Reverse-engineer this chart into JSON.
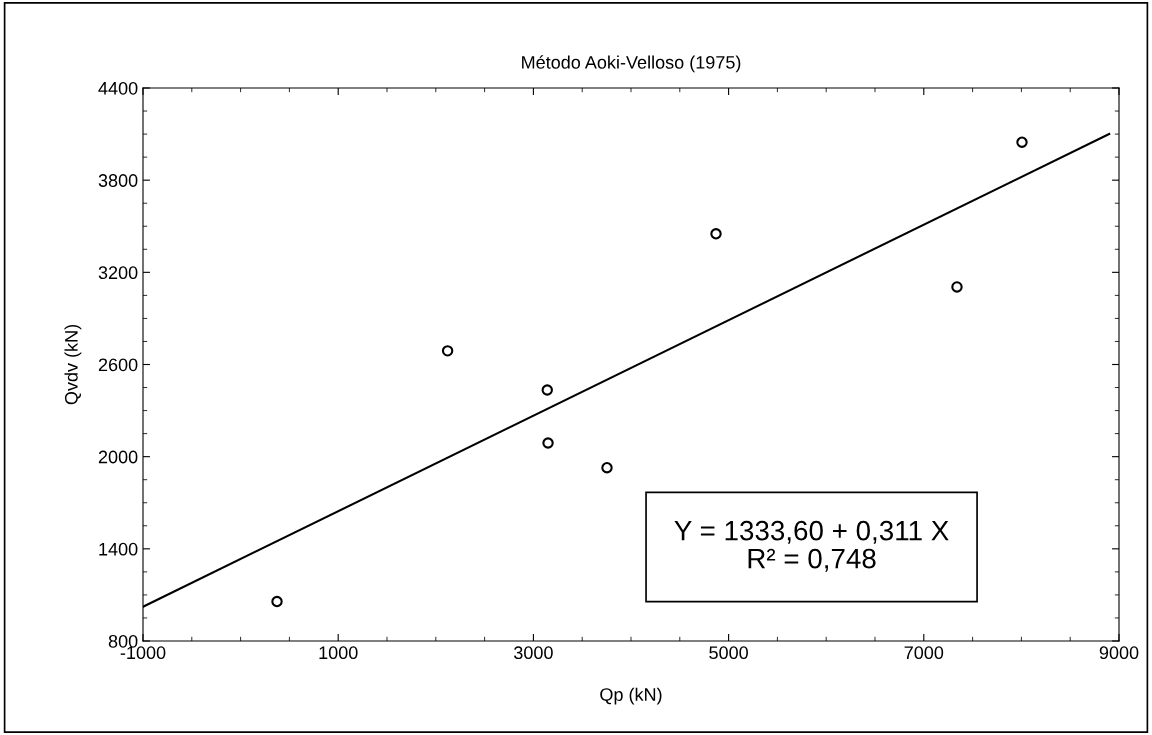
{
  "chart_data": {
    "type": "scatter",
    "title": "Método Aoki-Velloso (1975)",
    "xlabel": "Qp (kN)",
    "ylabel": "Qvdv (kN)",
    "xlim": [
      -1000,
      9000
    ],
    "xticks": [
      -1000,
      1000,
      3000,
      5000,
      7000,
      9000
    ],
    "ylim": [
      800,
      4400
    ],
    "yticks": [
      800,
      1400,
      2000,
      2600,
      3200,
      3800,
      4400
    ],
    "grid": false,
    "series": [
      {
        "marker": "circle",
        "color": "#000000",
        "x": [
          373,
          2121,
          3142,
          3150,
          3754,
          4871,
          7340,
          8006
        ],
        "values": [
          1057,
          2689,
          2434,
          2089,
          1928,
          3451,
          3105,
          4047
        ]
      },
      {
        "type": "line",
        "color": "#000000",
        "x": [
          -1000,
          8900
        ],
        "values": [
          1023,
          4101
        ]
      }
    ],
    "annotations": [
      "Y = 1333,60 + 0,311 X\nR² = 0,748"
    ]
  }
}
